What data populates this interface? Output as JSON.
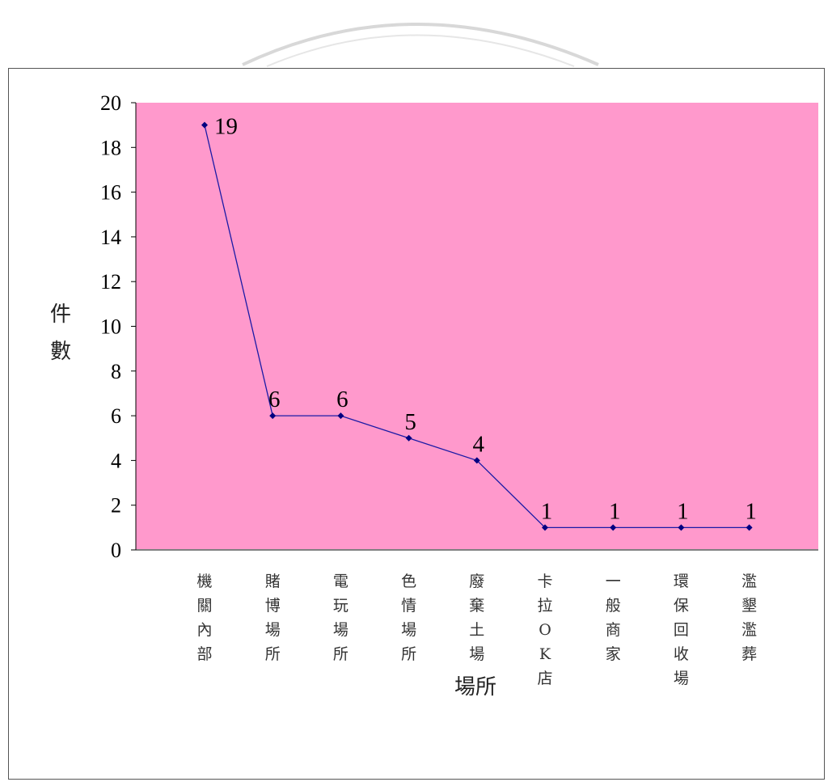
{
  "chart_data": {
    "type": "line",
    "xlabel": "場所",
    "ylabel": "件數",
    "ylim": [
      0,
      20
    ],
    "yticks": [
      "0",
      "2",
      "4",
      "6",
      "8",
      "10",
      "12",
      "14",
      "16",
      "18",
      "20"
    ],
    "grid": false,
    "legend": "none",
    "colors": {
      "plot_background": "#ff99cc",
      "line": "#1a1aa6",
      "marker": "#000080"
    },
    "categories": [
      "機關內部",
      "賭博場所",
      "電玩場所",
      "色情場所",
      "廢棄土場",
      "卡拉OK店",
      "一般商家",
      "環保回收場",
      "濫墾濫葬"
    ],
    "values": [
      19,
      6,
      6,
      5,
      4,
      1,
      1,
      1,
      1
    ],
    "data_labels": [
      "19",
      "6",
      "6",
      "5",
      "4",
      "1",
      "1",
      "1",
      "1"
    ]
  }
}
